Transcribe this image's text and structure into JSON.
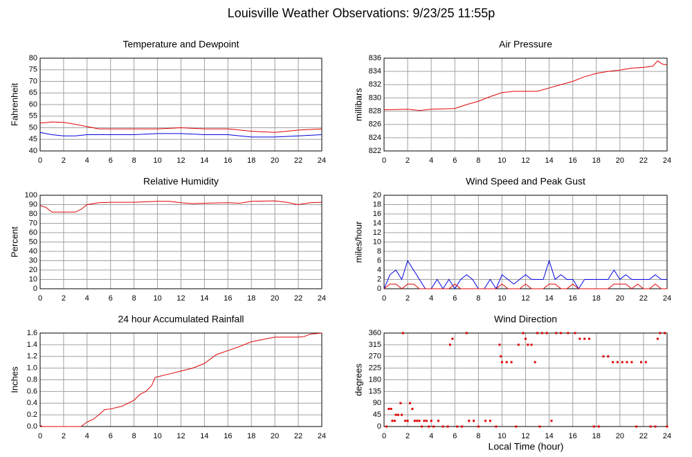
{
  "title": "Louisville Weather Observations: 9/23/25 11:55p",
  "x_label": "Local Time (hour)",
  "chart_data": [
    {
      "type": "line",
      "title": "Temperature and Dewpoint",
      "y_label": "Fahrenheit",
      "x": [
        0,
        1,
        2,
        3,
        4,
        5,
        6,
        8,
        10,
        12,
        14,
        16,
        18,
        20,
        22,
        24
      ],
      "series": [
        {
          "color": "#e00000",
          "values": [
            52,
            52.5,
            52.3,
            51.5,
            50.5,
            49.5,
            49.5,
            49.5,
            49.5,
            50,
            49.5,
            49.5,
            48.5,
            48,
            49,
            49.5
          ]
        },
        {
          "color": "#0000e0",
          "values": [
            48,
            47,
            46.5,
            46.5,
            47,
            47,
            47,
            47,
            47.5,
            47.5,
            47,
            47,
            46,
            46,
            46.5,
            47
          ]
        }
      ],
      "xlim": [
        0,
        24
      ],
      "xticks": [
        0,
        2,
        4,
        6,
        8,
        10,
        12,
        14,
        16,
        18,
        20,
        22,
        24
      ],
      "ylim": [
        40,
        80
      ],
      "yticks": [
        40,
        45,
        50,
        55,
        60,
        65,
        70,
        75,
        80
      ],
      "grid": true
    },
    {
      "type": "line",
      "title": "Air Pressure",
      "y_label": "millibars",
      "x": [
        0,
        2,
        3,
        4,
        6,
        7,
        8,
        9,
        10,
        11,
        13,
        14,
        15,
        16,
        17,
        18,
        19,
        20,
        21,
        22,
        22.8,
        23.2,
        23.6,
        24
      ],
      "series": [
        {
          "color": "#e00000",
          "values": [
            828.2,
            828.3,
            828.1,
            828.3,
            828.4,
            829,
            829.5,
            830.2,
            830.8,
            831,
            831,
            831.5,
            832,
            832.5,
            833.2,
            833.7,
            834,
            834.2,
            834.5,
            834.6,
            834.8,
            835.6,
            835.1,
            835
          ]
        }
      ],
      "xlim": [
        0,
        24
      ],
      "xticks": [
        0,
        2,
        4,
        6,
        8,
        10,
        12,
        14,
        16,
        18,
        20,
        22,
        24
      ],
      "ylim": [
        822,
        836
      ],
      "yticks": [
        822,
        824,
        826,
        828,
        830,
        832,
        834,
        836
      ],
      "grid": true
    },
    {
      "type": "line",
      "title": "Relative Humidity",
      "y_label": "Percent",
      "x": [
        0,
        0.5,
        1,
        2,
        3,
        3.5,
        4,
        5,
        6,
        8,
        10,
        11,
        12,
        13,
        14,
        16,
        17,
        18,
        20,
        21,
        22,
        23,
        24
      ],
      "series": [
        {
          "color": "#e00000",
          "values": [
            89,
            87,
            82,
            82,
            82,
            85,
            90,
            92,
            92.5,
            92.5,
            93.5,
            93.5,
            92,
            91,
            91.5,
            92,
            91.5,
            93.5,
            94,
            92.5,
            90,
            92,
            92.5
          ]
        }
      ],
      "xlim": [
        0,
        24
      ],
      "xticks": [
        0,
        2,
        4,
        6,
        8,
        10,
        12,
        14,
        16,
        18,
        20,
        22,
        24
      ],
      "ylim": [
        0,
        100
      ],
      "yticks": [
        0,
        10,
        20,
        30,
        40,
        50,
        60,
        70,
        80,
        90,
        100
      ],
      "grid": true
    },
    {
      "type": "line",
      "title": "Wind Speed and Peak Gust",
      "y_label": "miles/hour",
      "x": [
        0,
        0.5,
        1,
        1.5,
        2,
        2.5,
        3,
        3.5,
        4,
        4.5,
        5,
        5.5,
        6,
        6.5,
        7,
        7.5,
        8,
        8.5,
        9,
        9.5,
        10,
        10.5,
        11,
        11.5,
        12,
        12.5,
        13,
        13.5,
        14,
        14.5,
        15,
        15.5,
        16,
        16.5,
        17,
        17.5,
        18,
        18.5,
        19,
        19.5,
        20,
        20.5,
        21,
        21.5,
        22,
        22.5,
        23,
        23.5,
        24
      ],
      "series": [
        {
          "color": "#0000e0",
          "values": [
            0,
            3,
            4,
            2,
            6,
            4,
            2,
            0,
            0,
            2,
            0,
            2,
            0,
            2,
            3,
            2,
            0,
            0,
            2,
            0,
            3,
            2,
            1,
            2,
            3,
            2,
            2,
            2,
            6,
            2,
            3,
            2,
            2,
            0,
            2,
            2,
            2,
            2,
            2,
            4,
            2,
            3,
            2,
            2,
            2,
            2,
            3,
            2,
            2
          ]
        },
        {
          "color": "#e00000",
          "values": [
            0,
            1,
            1,
            0,
            1,
            1,
            0,
            0,
            0,
            0,
            0,
            0,
            1,
            0,
            0,
            0,
            0,
            0,
            0,
            0,
            1,
            0,
            0,
            0,
            1,
            0,
            0,
            0,
            1,
            1,
            0,
            0,
            1,
            0,
            0,
            0,
            0,
            0,
            0,
            1,
            1,
            1,
            0,
            1,
            0,
            0,
            1,
            0,
            0
          ]
        }
      ],
      "xlim": [
        0,
        24
      ],
      "xticks": [
        0,
        2,
        4,
        6,
        8,
        10,
        12,
        14,
        16,
        18,
        20,
        22,
        24
      ],
      "ylim": [
        0,
        20
      ],
      "yticks": [
        0,
        2,
        4,
        6,
        8,
        10,
        12,
        14,
        16,
        18,
        20
      ],
      "grid": true
    },
    {
      "type": "line",
      "title": "24 hour Accumulated Rainfall",
      "y_label": "Inches",
      "x": [
        0,
        0.2,
        3.5,
        4,
        4.5,
        5,
        5.5,
        6,
        7,
        8,
        8.5,
        9,
        9.5,
        9.8,
        10,
        11,
        12,
        13,
        14,
        15,
        16,
        17,
        18,
        19,
        20,
        22,
        22.5,
        23,
        24
      ],
      "series": [
        {
          "color": "#e00000",
          "values": [
            0.02,
            0,
            0,
            0.08,
            0.12,
            0.2,
            0.29,
            0.3,
            0.35,
            0.45,
            0.55,
            0.6,
            0.7,
            0.84,
            0.85,
            0.9,
            0.95,
            1.0,
            1.08,
            1.23,
            1.3,
            1.37,
            1.45,
            1.49,
            1.53,
            1.53,
            1.54,
            1.58,
            1.6
          ]
        }
      ],
      "xlim": [
        0,
        24
      ],
      "xticks": [
        0,
        2,
        4,
        6,
        8,
        10,
        12,
        14,
        16,
        18,
        20,
        22,
        24
      ],
      "ylim": [
        0,
        1.6
      ],
      "yticks": [
        {
          "value": 0,
          "label": "0.0"
        },
        0.2,
        0.4,
        0.6,
        0.8,
        {
          "value": 1,
          "label": "1.0"
        },
        1.2,
        1.4,
        1.6
      ],
      "grid": true
    },
    {
      "type": "scatter",
      "title": "Wind Direction",
      "y_label": "degrees",
      "x": [
        0.2,
        0.4,
        0.6,
        0.7,
        0.9,
        1.0,
        1.2,
        1.4,
        1.5,
        1.6,
        1.8,
        2.0,
        2.2,
        2.4,
        2.6,
        2.8,
        3.0,
        3.2,
        3.4,
        3.6,
        3.8,
        4.0,
        4.2,
        4.6,
        5.0,
        5.4,
        5.6,
        5.8,
        6.2,
        6.6,
        7.0,
        7.2,
        7.6,
        8.0,
        8.6,
        9.0,
        9.5,
        9.8,
        9.9,
        10.0,
        10.4,
        10.8,
        11.2,
        11.4,
        11.8,
        12.0,
        12.2,
        12.5,
        12.8,
        13.0,
        13.2,
        13.4,
        13.8,
        14.2,
        14.6,
        15.0,
        15.6,
        16.2,
        16.6,
        17.0,
        17.4,
        17.8,
        18.2,
        18.6,
        19.0,
        19.4,
        19.8,
        20.2,
        20.6,
        21.0,
        21.4,
        21.8,
        22.2,
        22.6,
        23.0,
        23.2,
        23.4,
        23.8,
        24
      ],
      "series": [
        {
          "color": "#e00000",
          "values": [
            0,
            68,
            68,
            22,
            22,
            45,
            45,
            90,
            45,
            360,
            22,
            22,
            90,
            68,
            22,
            22,
            22,
            0,
            22,
            22,
            0,
            22,
            0,
            22,
            0,
            0,
            315,
            338,
            0,
            0,
            360,
            22,
            22,
            0,
            22,
            22,
            0,
            315,
            270,
            248,
            248,
            248,
            0,
            315,
            360,
            338,
            315,
            315,
            248,
            360,
            0,
            360,
            360,
            22,
            360,
            360,
            360,
            360,
            338,
            338,
            338,
            0,
            0,
            270,
            270,
            248,
            248,
            248,
            248,
            248,
            0,
            248,
            248,
            0,
            0,
            338,
            360,
            360,
            0
          ]
        }
      ],
      "xlim": [
        0,
        24
      ],
      "xticks": [
        0,
        2,
        4,
        6,
        8,
        10,
        12,
        14,
        16,
        18,
        20,
        22,
        24
      ],
      "ylim": [
        0,
        360
      ],
      "yticks": [
        0,
        45,
        90,
        135,
        180,
        225,
        270,
        315,
        360
      ],
      "grid": true
    }
  ]
}
